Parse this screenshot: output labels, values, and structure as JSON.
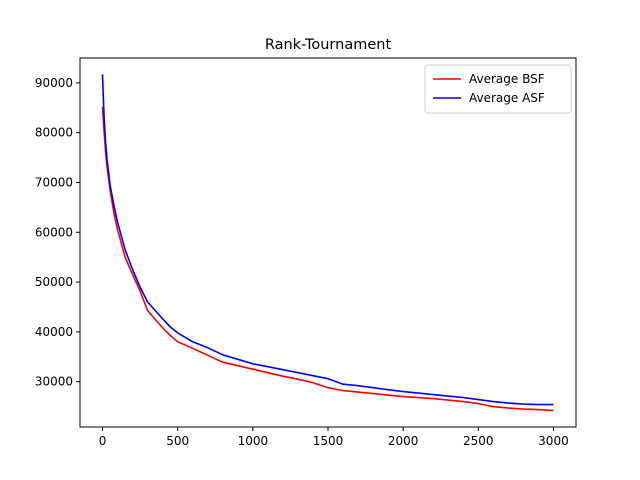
{
  "chart_data": {
    "type": "line",
    "title": "Rank-Tournament",
    "xlabel": "",
    "ylabel": "",
    "xlim": [
      -150,
      3150
    ],
    "ylim": [
      20900,
      95000
    ],
    "xticks": [
      0,
      500,
      1000,
      1500,
      2000,
      2500,
      3000
    ],
    "yticks": [
      30000,
      40000,
      50000,
      60000,
      70000,
      80000,
      90000
    ],
    "grid": false,
    "legend": "top-right",
    "series": [
      {
        "name": "Average BSF",
        "color": "#ff0000",
        "x": [
          0,
          10,
          20,
          30,
          50,
          75,
          100,
          150,
          200,
          250,
          300,
          350,
          400,
          450,
          500,
          600,
          700,
          800,
          900,
          1000,
          1100,
          1200,
          1300,
          1400,
          1500,
          1600,
          1700,
          1800,
          1900,
          2000,
          2100,
          2200,
          2300,
          2400,
          2500,
          2600,
          2700,
          2800,
          2900,
          3000
        ],
        "y": [
          85200,
          80500,
          76000,
          73000,
          68500,
          64000,
          60500,
          55000,
          51500,
          48200,
          44300,
          42500,
          40800,
          39300,
          38000,
          36700,
          35300,
          33900,
          33200,
          32500,
          31800,
          31100,
          30500,
          29800,
          28800,
          28200,
          27900,
          27600,
          27300,
          27000,
          26800,
          26600,
          26300,
          26000,
          25600,
          25000,
          24700,
          24500,
          24400,
          24200
        ]
      },
      {
        "name": "Average ASF",
        "color": "#0000ff",
        "x": [
          0,
          10,
          20,
          30,
          50,
          75,
          100,
          150,
          200,
          250,
          300,
          350,
          400,
          450,
          500,
          600,
          700,
          800,
          900,
          1000,
          1100,
          1200,
          1300,
          1400,
          1500,
          1600,
          1700,
          1800,
          1900,
          2000,
          2100,
          2200,
          2300,
          2400,
          2500,
          2600,
          2700,
          2800,
          2900,
          3000
        ],
        "y": [
          91700,
          83500,
          78000,
          74500,
          69500,
          65500,
          62000,
          56500,
          52500,
          49000,
          46000,
          44300,
          42600,
          41000,
          39800,
          38000,
          36800,
          35400,
          34500,
          33600,
          33000,
          32400,
          31800,
          31200,
          30600,
          29500,
          29200,
          28800,
          28400,
          28000,
          27700,
          27400,
          27100,
          26800,
          26400,
          26000,
          25700,
          25500,
          25400,
          25400
        ]
      }
    ]
  }
}
